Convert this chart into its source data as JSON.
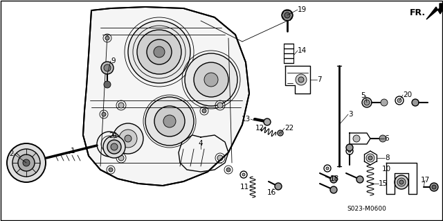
{
  "background_color": "#ffffff",
  "border_color": "#000000",
  "diagram_code": "S023-M0600",
  "figsize": [
    6.4,
    3.19
  ],
  "dpi": 100,
  "image_b64": ""
}
